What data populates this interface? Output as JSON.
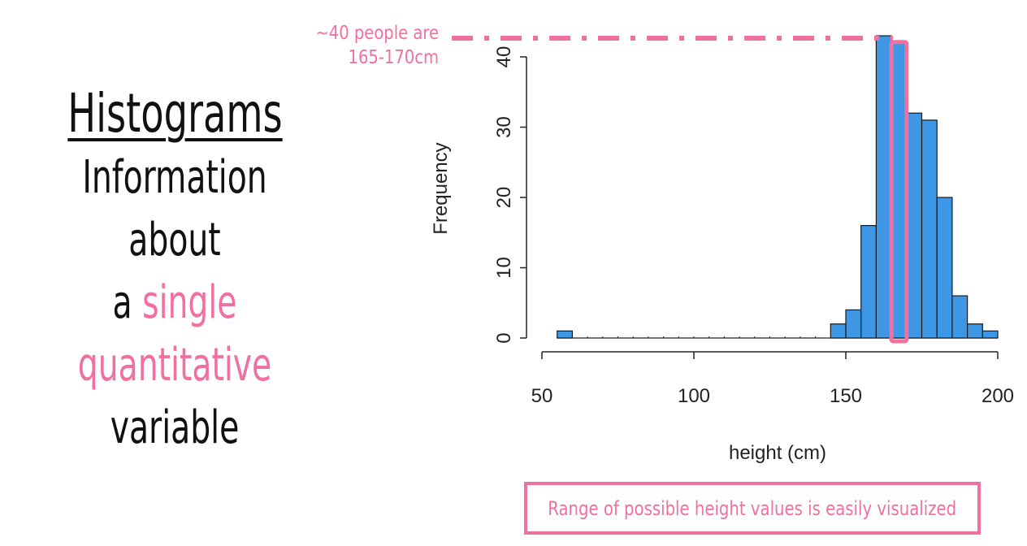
{
  "heading": {
    "title": "Histograms",
    "line1": "Information about",
    "line2_prefix": "a ",
    "line2_highlight": "single",
    "line3_highlight": "quantitative",
    "line4": "variable"
  },
  "annotation": {
    "line1": "~40 people are",
    "line2": "165-170cm"
  },
  "caption": "Range of possible height values is easily visualized",
  "colors": {
    "accent": "#f0719f",
    "bar_fill": "#3d97e4",
    "text": "#111111"
  },
  "chart_data": {
    "type": "bar",
    "title": "",
    "xlabel": "height (cm)",
    "ylabel": "Frequency",
    "xlim": [
      50,
      200
    ],
    "ylim": [
      0,
      40
    ],
    "x_ticks": [
      "50",
      "100",
      "150",
      "200"
    ],
    "y_ticks": [
      "0",
      "10",
      "20",
      "30",
      "40"
    ],
    "bin_width": 5,
    "bins": [
      {
        "start": 55,
        "end": 60,
        "count": 1
      },
      {
        "start": 60,
        "end": 65,
        "count": 0
      },
      {
        "start": 65,
        "end": 70,
        "count": 0
      },
      {
        "start": 70,
        "end": 75,
        "count": 0
      },
      {
        "start": 75,
        "end": 80,
        "count": 0
      },
      {
        "start": 80,
        "end": 85,
        "count": 0
      },
      {
        "start": 85,
        "end": 90,
        "count": 0
      },
      {
        "start": 90,
        "end": 95,
        "count": 0
      },
      {
        "start": 95,
        "end": 100,
        "count": 0
      },
      {
        "start": 100,
        "end": 105,
        "count": 0
      },
      {
        "start": 105,
        "end": 110,
        "count": 0
      },
      {
        "start": 110,
        "end": 115,
        "count": 0
      },
      {
        "start": 115,
        "end": 120,
        "count": 0
      },
      {
        "start": 120,
        "end": 125,
        "count": 0
      },
      {
        "start": 125,
        "end": 130,
        "count": 0
      },
      {
        "start": 130,
        "end": 135,
        "count": 0
      },
      {
        "start": 135,
        "end": 140,
        "count": 0
      },
      {
        "start": 140,
        "end": 145,
        "count": 0
      },
      {
        "start": 145,
        "end": 150,
        "count": 2
      },
      {
        "start": 150,
        "end": 155,
        "count": 4
      },
      {
        "start": 155,
        "end": 160,
        "count": 16
      },
      {
        "start": 160,
        "end": 165,
        "count": 43
      },
      {
        "start": 165,
        "end": 170,
        "count": 42
      },
      {
        "start": 170,
        "end": 175,
        "count": 32
      },
      {
        "start": 175,
        "end": 180,
        "count": 31
      },
      {
        "start": 180,
        "end": 185,
        "count": 20
      },
      {
        "start": 185,
        "end": 190,
        "count": 6
      },
      {
        "start": 190,
        "end": 195,
        "count": 2
      },
      {
        "start": 195,
        "end": 200,
        "count": 1
      }
    ],
    "highlight_bin": {
      "start": 165,
      "end": 170,
      "count": 42
    }
  }
}
